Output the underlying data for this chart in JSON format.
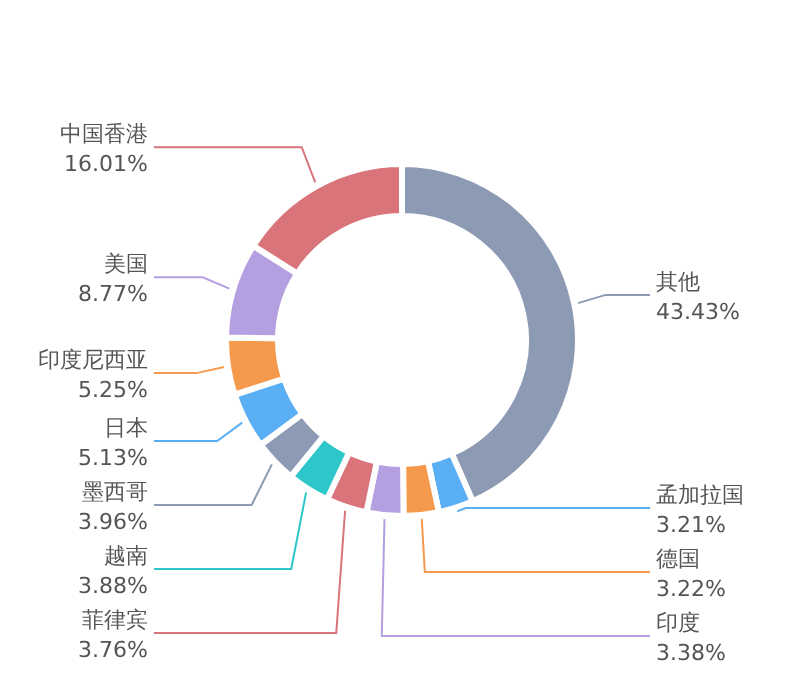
{
  "chart_data": {
    "type": "donut",
    "categories": [
      "其他",
      "孟加拉国",
      "德国",
      "印度",
      "菲律宾",
      "越南",
      "墨西哥",
      "日本",
      "印度尼西亚",
      "美国",
      "中国香港"
    ],
    "values": [
      43.43,
      3.21,
      3.22,
      3.38,
      3.76,
      3.88,
      3.96,
      5.13,
      5.25,
      8.77,
      16.01
    ],
    "value_labels": [
      "43.43%",
      "3.21%",
      "3.22%",
      "3.38%",
      "3.76%",
      "3.88%",
      "3.96%",
      "5.13%",
      "5.25%",
      "8.77%",
      "16.01%"
    ],
    "colors": [
      "#8d9ab3",
      "#5aaef3",
      "#f59a4c",
      "#b49fe0",
      "#d9747a",
      "#2ec7c9",
      "#8d9ab3",
      "#5aaef3",
      "#f59a4c",
      "#b49fe0",
      "#d9747a"
    ]
  }
}
